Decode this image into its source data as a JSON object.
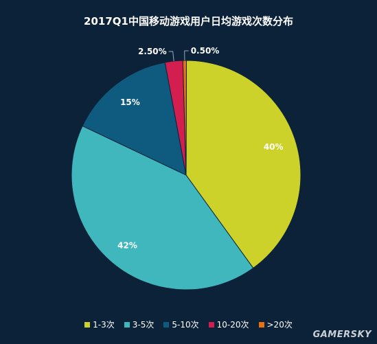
{
  "chart_data": {
    "type": "pie",
    "title": "2017Q1中国移动游戏用户日均游戏次数分布",
    "categories": [
      "1-3次",
      "3-5次",
      "5-10次",
      "10-20次",
      ">20次"
    ],
    "values": [
      40,
      42,
      15,
      2.5,
      0.5
    ],
    "labels": [
      "40%",
      "42%",
      "15%",
      "2.50%",
      "0.50%"
    ],
    "colors": [
      "#ccd229",
      "#40b7bd",
      "#0f5b80",
      "#d21f4f",
      "#e8710f"
    ],
    "legend_position": "bottom"
  },
  "watermark": "GAMERSKY"
}
